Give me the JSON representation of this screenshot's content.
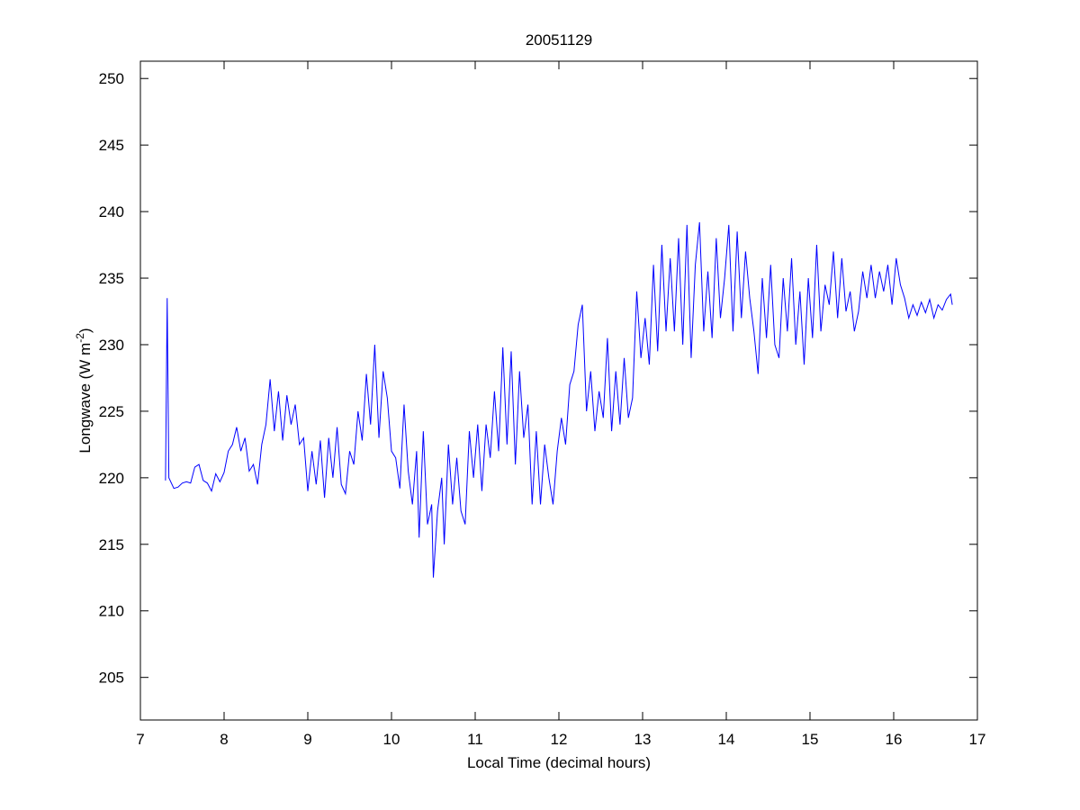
{
  "chart_data": {
    "type": "line",
    "title": "20051129",
    "xlabel": "Local Time (decimal hours)",
    "ylabel": {
      "text": "Longwave (W m",
      "sup": "-2",
      "end": ")"
    },
    "xlim": [
      7,
      17
    ],
    "xticks": [
      7,
      8,
      9,
      10,
      11,
      12,
      13,
      14,
      15,
      16,
      17
    ],
    "ylim": [
      201.8,
      251.3
    ],
    "yticks": [
      205,
      210,
      215,
      220,
      225,
      230,
      235,
      240,
      245,
      250
    ],
    "grid": false,
    "series": [
      {
        "color": "#0000ff",
        "x": [
          7.3,
          7.32,
          7.34,
          7.4,
          7.45,
          7.5,
          7.55,
          7.6,
          7.65,
          7.7,
          7.75,
          7.8,
          7.85,
          7.9,
          7.95,
          8.0,
          8.05,
          8.1,
          8.15,
          8.2,
          8.25,
          8.3,
          8.35,
          8.4,
          8.45,
          8.5,
          8.55,
          8.6,
          8.65,
          8.7,
          8.75,
          8.8,
          8.85,
          8.9,
          8.95,
          9.0,
          9.05,
          9.1,
          9.15,
          9.2,
          9.25,
          9.3,
          9.35,
          9.4,
          9.45,
          9.5,
          9.55,
          9.6,
          9.65,
          9.7,
          9.75,
          9.8,
          9.85,
          9.9,
          9.95,
          10.0,
          10.05,
          10.1,
          10.15,
          10.2,
          10.25,
          10.3,
          10.33,
          10.38,
          10.43,
          10.48,
          10.5,
          10.55,
          10.6,
          10.63,
          10.68,
          10.73,
          10.78,
          10.83,
          10.88,
          10.93,
          10.98,
          11.03,
          11.08,
          11.13,
          11.18,
          11.23,
          11.28,
          11.33,
          11.38,
          11.43,
          11.48,
          11.53,
          11.58,
          11.63,
          11.68,
          11.73,
          11.78,
          11.83,
          11.88,
          11.93,
          11.98,
          12.03,
          12.08,
          12.13,
          12.18,
          12.23,
          12.28,
          12.33,
          12.38,
          12.43,
          12.48,
          12.53,
          12.58,
          12.63,
          12.68,
          12.73,
          12.78,
          12.83,
          12.88,
          12.93,
          12.98,
          13.03,
          13.08,
          13.13,
          13.18,
          13.23,
          13.28,
          13.33,
          13.38,
          13.43,
          13.48,
          13.53,
          13.58,
          13.63,
          13.68,
          13.73,
          13.78,
          13.83,
          13.88,
          13.93,
          13.98,
          14.03,
          14.08,
          14.13,
          14.18,
          14.23,
          14.28,
          14.33,
          14.38,
          14.43,
          14.48,
          14.53,
          14.58,
          14.63,
          14.68,
          14.73,
          14.78,
          14.83,
          14.88,
          14.93,
          14.98,
          15.03,
          15.08,
          15.13,
          15.18,
          15.23,
          15.28,
          15.33,
          15.38,
          15.43,
          15.48,
          15.53,
          15.58,
          15.63,
          15.68,
          15.73,
          15.78,
          15.83,
          15.88,
          15.93,
          15.98,
          16.03,
          16.08,
          16.13,
          16.18,
          16.23,
          16.28,
          16.33,
          16.38,
          16.43,
          16.48,
          16.53,
          16.58,
          16.63,
          16.68,
          16.7
        ],
        "values": [
          219.8,
          233.5,
          220,
          219.2,
          219.3,
          219.6,
          219.7,
          219.6,
          220.8,
          221.0,
          219.8,
          219.6,
          219.0,
          220.3,
          219.7,
          220.4,
          222.0,
          222.5,
          223.8,
          222.0,
          223.0,
          220.5,
          221.0,
          219.5,
          222.5,
          224.0,
          227.4,
          223.5,
          226.5,
          222.8,
          226.2,
          224.0,
          225.5,
          222.5,
          223.0,
          219.0,
          222.0,
          219.5,
          222.8,
          218.5,
          223.0,
          220.0,
          223.8,
          219.5,
          218.8,
          222.0,
          221.0,
          225.0,
          222.8,
          227.8,
          224.0,
          230.0,
          223.0,
          228.0,
          226.0,
          222.0,
          221.5,
          219.2,
          225.5,
          220.5,
          218.0,
          222.0,
          215.5,
          223.5,
          216.5,
          218.0,
          212.5,
          217.5,
          220.0,
          215.0,
          222.5,
          218.0,
          221.5,
          217.5,
          216.5,
          223.5,
          220.0,
          224.0,
          219.0,
          224.0,
          221.5,
          226.5,
          222.0,
          229.8,
          222.5,
          229.5,
          221.0,
          228.0,
          223.0,
          225.5,
          218.0,
          223.5,
          218.0,
          222.5,
          220.0,
          218.0,
          222.0,
          224.5,
          222.5,
          227.0,
          228.0,
          231.5,
          233.0,
          225.0,
          228.0,
          223.5,
          226.5,
          224.5,
          230.5,
          223.5,
          228.0,
          224.0,
          229.0,
          224.5,
          226.0,
          234.0,
          229.0,
          232.0,
          228.5,
          236.0,
          229.5,
          237.5,
          231.0,
          236.5,
          231.0,
          238.0,
          230.0,
          239.0,
          229.0,
          236.0,
          239.2,
          231.0,
          235.5,
          230.5,
          238.0,
          232.0,
          235.0,
          239.0,
          231.0,
          238.5,
          232.0,
          237.0,
          233.5,
          231.0,
          227.8,
          235.0,
          230.5,
          236.0,
          230.0,
          229.0,
          235.0,
          231.0,
          236.5,
          230.0,
          234.0,
          228.5,
          235.0,
          230.5,
          237.5,
          231.0,
          234.5,
          233.0,
          237.0,
          232.0,
          236.5,
          232.5,
          234.0,
          231.0,
          232.5,
          235.5,
          233.5,
          236.0,
          233.5,
          235.5,
          234.0,
          236.0,
          233.0,
          236.5,
          234.5,
          233.5,
          232.0,
          233.0,
          232.2,
          233.2,
          232.4,
          233.4,
          232.0,
          233.0,
          232.6,
          233.4,
          233.8,
          233.0
        ]
      }
    ]
  }
}
